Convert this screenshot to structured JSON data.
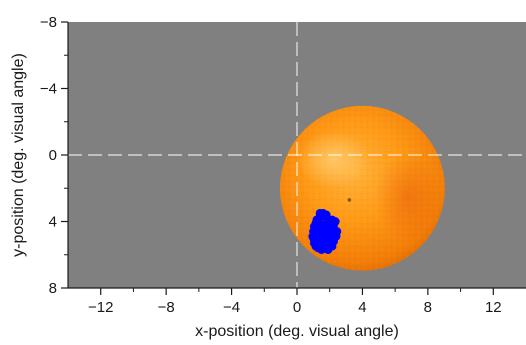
{
  "chart_data": {
    "type": "scatter",
    "xlabel": "x-position (deg. visual angle)",
    "ylabel": "y-position (deg. visual angle)",
    "xlim": [
      -14,
      14
    ],
    "ylim": [
      8,
      -8
    ],
    "y_axis_inverted": true,
    "x_ticks": [
      -12,
      -8,
      -4,
      0,
      4,
      8,
      12
    ],
    "x_tick_labels": [
      "−12",
      "−8",
      "−4",
      "0",
      "4",
      "8",
      "12"
    ],
    "y_ticks": [
      -8,
      -4,
      0,
      4,
      8
    ],
    "y_tick_labels": [
      "−8",
      "−4",
      "0",
      "4",
      "8"
    ],
    "x_minor_ticks": [
      -10,
      -6,
      -2,
      2,
      6,
      10
    ],
    "y_minor_ticks": [
      -6,
      -2,
      2,
      6
    ],
    "reference_lines": [
      {
        "orientation": "vertical",
        "value": 0,
        "style": "dashed"
      },
      {
        "orientation": "horizontal",
        "value": 0,
        "style": "dashed"
      }
    ],
    "background_color": "#808080",
    "stimulus": {
      "type": "image",
      "depicts": "orange",
      "center": [
        4.0,
        2.0
      ],
      "radius": 5.0,
      "navel_point": [
        3.2,
        2.7
      ]
    },
    "series": [
      {
        "color": "#0000ff",
        "marker": "circle",
        "x": [
          1.05,
          1.15,
          1.25,
          1.35,
          1.45,
          1.55,
          1.65,
          1.75,
          1.85,
          1.95,
          2.05,
          2.15,
          2.25,
          1.0,
          1.2,
          1.4,
          1.6,
          1.8,
          2.0,
          2.2,
          2.35,
          1.1,
          1.3,
          1.5,
          1.7,
          1.9,
          2.1,
          2.3,
          1.0,
          1.2,
          1.4,
          1.6,
          1.8,
          2.0,
          2.2,
          2.4,
          1.05,
          1.25,
          1.45,
          1.65,
          1.85,
          2.05,
          2.25,
          1.15,
          1.35,
          1.55,
          1.75,
          1.95,
          2.15,
          1.3,
          1.5,
          1.7,
          1.9,
          1.4,
          1.6,
          1.8,
          1.2,
          2.3,
          0.95,
          2.45
        ],
        "y": [
          4.3,
          4.1,
          4.0,
          3.8,
          3.7,
          3.7,
          3.6,
          3.7,
          3.8,
          4.0,
          4.1,
          3.9,
          4.2,
          4.6,
          4.5,
          4.3,
          4.2,
          4.3,
          4.4,
          4.4,
          4.0,
          4.8,
          4.8,
          4.6,
          4.7,
          4.6,
          4.8,
          4.7,
          5.0,
          5.1,
          5.0,
          4.9,
          5.0,
          5.1,
          5.0,
          4.9,
          5.3,
          5.3,
          5.2,
          5.3,
          5.2,
          5.3,
          5.2,
          5.5,
          5.5,
          5.4,
          5.5,
          5.4,
          5.5,
          5.6,
          5.7,
          5.6,
          5.7,
          3.5,
          3.5,
          3.6,
          3.9,
          4.5,
          4.9,
          4.6
        ]
      }
    ]
  }
}
